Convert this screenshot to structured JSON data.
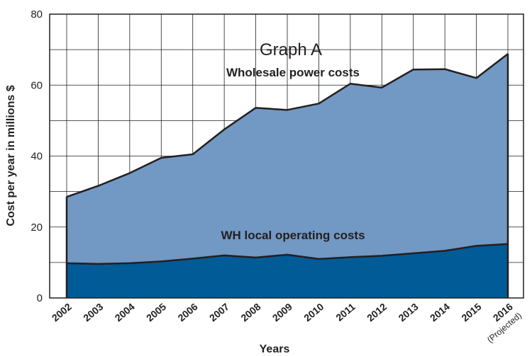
{
  "chart_data": {
    "type": "area",
    "title": "Graph A",
    "xlabel": "Years",
    "ylabel": "Cost per year in millions $",
    "ylim": [
      0,
      80
    ],
    "yticks": [
      0,
      20,
      40,
      60,
      80
    ],
    "x": [
      "2002",
      "2003",
      "2004",
      "2005",
      "2006",
      "2007",
      "2008",
      "2009",
      "2010",
      "2011",
      "2012",
      "2013",
      "2014",
      "2015",
      "2016"
    ],
    "x_sublabels": {
      "2016": "(Projected)"
    },
    "stacked": true,
    "grid": true,
    "series": [
      {
        "name": "WH local operating costs",
        "color": "#005b96",
        "values": [
          9.8,
          9.6,
          9.8,
          10.3,
          11.1,
          12.0,
          11.4,
          12.2,
          11.0,
          11.5,
          11.9,
          12.6,
          13.3,
          14.7,
          15.2
        ]
      },
      {
        "name": "Wholesale power costs",
        "color": "#7298c4",
        "values": [
          18.7,
          22.0,
          25.4,
          29.2,
          29.4,
          35.5,
          42.2,
          40.8,
          43.8,
          48.9,
          47.4,
          51.8,
          51.2,
          47.3,
          53.6
        ]
      }
    ]
  }
}
